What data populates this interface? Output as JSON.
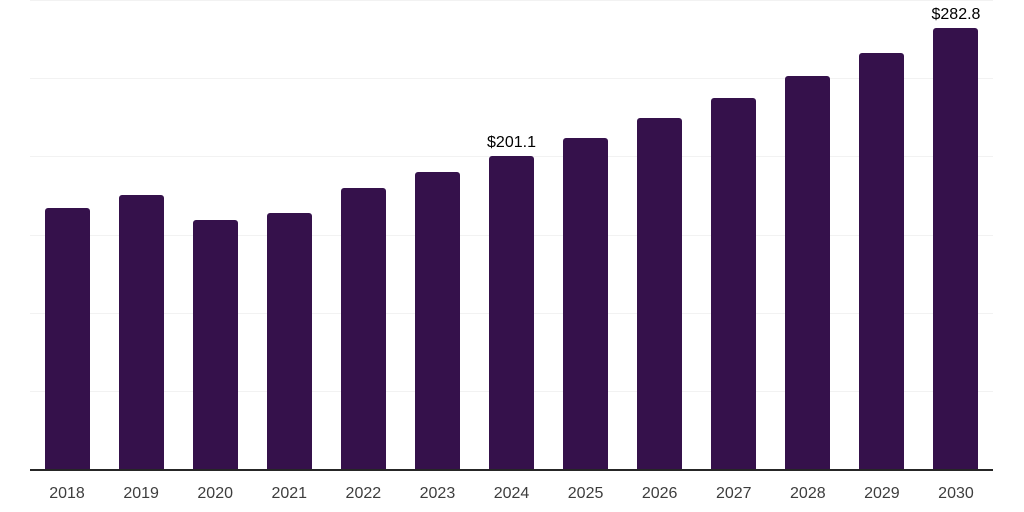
{
  "chart_data": {
    "type": "bar",
    "title": "",
    "xlabel": "",
    "ylabel": "",
    "categories": [
      "2018",
      "2019",
      "2020",
      "2021",
      "2022",
      "2023",
      "2024",
      "2025",
      "2026",
      "2027",
      "2028",
      "2029",
      "2030"
    ],
    "values": [
      167.4,
      175.9,
      159.9,
      164.6,
      180.4,
      190.6,
      201.1,
      212.6,
      225.4,
      237.8,
      252.2,
      266.9,
      282.8
    ],
    "data_labels": [
      null,
      null,
      null,
      null,
      null,
      null,
      "$201.1",
      null,
      null,
      null,
      null,
      null,
      "$282.8"
    ],
    "ylim": [
      0,
      300
    ],
    "gridline_interval": 50,
    "grid": true,
    "y_tick_labels_visible": false,
    "legend": "none"
  },
  "colors": {
    "bar": "#35114B",
    "gridline": "#f2f2f2",
    "axis_line": "#262626",
    "tick_label": "#3d3d3d",
    "data_label": "#000000",
    "background": "#ffffff"
  }
}
